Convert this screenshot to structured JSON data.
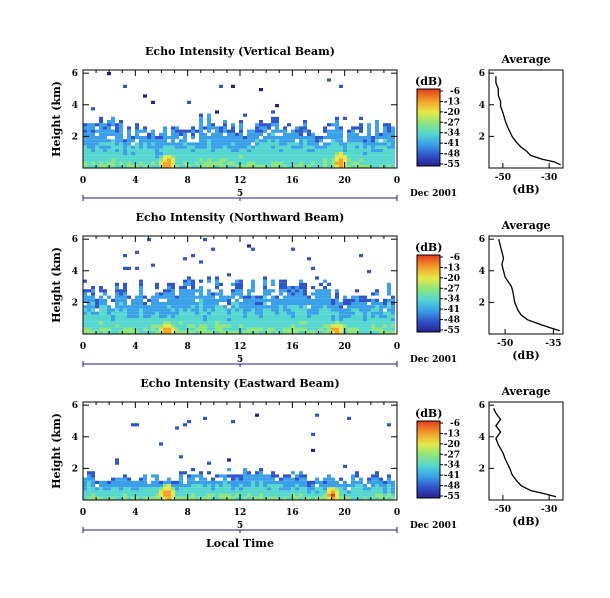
{
  "chart_data": [
    {
      "type": "heatmap",
      "title": "Echo Intensity (Vertical Beam)",
      "ylabel": "Height (km)",
      "x_ticks": [
        "0",
        "4",
        "8",
        "12",
        "16",
        "20",
        "0"
      ],
      "y_ticks": [
        "2",
        "4",
        "6"
      ],
      "xlim": [
        0,
        24
      ],
      "ylim": [
        0,
        6.2
      ],
      "date_marker": "5",
      "date_label": "Dec 2001",
      "colorbar": {
        "unit": "(dB)",
        "ticks": [
          "-6",
          "-13",
          "-20",
          "-27",
          "-34",
          "-41",
          "-48",
          "-55"
        ]
      },
      "echo_top_km": 2.6,
      "peaks": [
        {
          "x": 6.5,
          "height_km": 0.6
        },
        {
          "x": 19.8,
          "height_km": 0.7
        }
      ],
      "average_profile": {
        "title": "Average",
        "xlabel": "(dB)",
        "x_ticks": [
          "-50",
          "-30"
        ],
        "xlim": [
          -56,
          -24
        ],
        "y_ticks": [
          "2",
          "4",
          "6"
        ],
        "ylim": [
          0,
          6.2
        ],
        "points": [
          [
            -25,
            0.2
          ],
          [
            -28,
            0.4
          ],
          [
            -33,
            0.55
          ],
          [
            -38,
            0.8
          ],
          [
            -40,
            1.1
          ],
          [
            -42,
            1.3
          ],
          [
            -44,
            1.6
          ],
          [
            -46,
            2.0
          ],
          [
            -48,
            2.6
          ],
          [
            -49,
            3.0
          ],
          [
            -50,
            3.5
          ],
          [
            -51,
            3.9
          ],
          [
            -51,
            4.2
          ],
          [
            -52,
            4.6
          ],
          [
            -52,
            5.0
          ],
          [
            -53,
            5.4
          ],
          [
            -53,
            5.8
          ]
        ]
      }
    },
    {
      "type": "heatmap",
      "title": "Echo Intensity (Northward Beam)",
      "ylabel": "Height (km)",
      "x_ticks": [
        "0",
        "4",
        "8",
        "12",
        "16",
        "20",
        "0"
      ],
      "y_ticks": [
        "2",
        "4",
        "6"
      ],
      "xlim": [
        0,
        24
      ],
      "ylim": [
        0,
        6.2
      ],
      "date_marker": "5",
      "date_label": "Dec 2001",
      "colorbar": {
        "unit": "(dB)",
        "ticks": [
          "-6",
          "-13",
          "-20",
          "-27",
          "-34",
          "-41",
          "-48",
          "-55"
        ]
      },
      "echo_top_km": 2.8,
      "peaks": [
        {
          "x": 6.5,
          "height_km": 0.5
        },
        {
          "x": 19.5,
          "height_km": 0.5
        }
      ],
      "average_profile": {
        "title": "Average",
        "xlabel": "(dB)",
        "x_ticks": [
          "-50",
          "-35"
        ],
        "xlim": [
          -55,
          -32
        ],
        "y_ticks": [
          "2",
          "4",
          "6"
        ],
        "ylim": [
          0,
          6.2
        ],
        "points": [
          [
            -33,
            0.2
          ],
          [
            -36,
            0.4
          ],
          [
            -39,
            0.6
          ],
          [
            -43,
            0.9
          ],
          [
            -45,
            1.2
          ],
          [
            -46,
            1.5
          ],
          [
            -47,
            2.0
          ],
          [
            -47.5,
            2.6
          ],
          [
            -48,
            3.0
          ],
          [
            -50,
            3.6
          ],
          [
            -50.5,
            4.0
          ],
          [
            -51,
            4.4
          ],
          [
            -50.5,
            4.8
          ],
          [
            -51,
            5.2
          ],
          [
            -51.5,
            5.6
          ],
          [
            -52,
            6.0
          ]
        ]
      }
    },
    {
      "type": "heatmap",
      "title": "Echo Intensity (Eastward Beam)",
      "ylabel": "Height (km)",
      "x_ticks": [
        "0",
        "4",
        "8",
        "12",
        "16",
        "20",
        "0"
      ],
      "y_ticks": [
        "2",
        "4",
        "6"
      ],
      "xlim": [
        0,
        24
      ],
      "ylim": [
        0,
        6.2
      ],
      "date_marker": "5",
      "date_label": "Dec 2001",
      "xlabel": "Local Time",
      "colorbar": {
        "unit": "(dB)",
        "ticks": [
          "-6",
          "-13",
          "-20",
          "-27",
          "-34",
          "-41",
          "-48",
          "-55"
        ]
      },
      "echo_top_km": 1.5,
      "peaks": [
        {
          "x": 6.5,
          "height_km": 0.7
        },
        {
          "x": 19.2,
          "height_km": 0.6
        }
      ],
      "average_profile": {
        "title": "Average",
        "xlabel": "(dB)",
        "x_ticks": [
          "-50",
          "-30"
        ],
        "xlim": [
          -56,
          -24
        ],
        "y_ticks": [
          "2",
          "4",
          "6"
        ],
        "ylim": [
          0,
          6.2
        ],
        "points": [
          [
            -27,
            0.2
          ],
          [
            -32,
            0.4
          ],
          [
            -38,
            0.6
          ],
          [
            -42,
            0.9
          ],
          [
            -44,
            1.2
          ],
          [
            -46,
            1.6
          ],
          [
            -47,
            2.0
          ],
          [
            -49,
            2.6
          ],
          [
            -50,
            3.0
          ],
          [
            -52,
            3.5
          ],
          [
            -53,
            3.9
          ],
          [
            -51,
            4.3
          ],
          [
            -53,
            4.7
          ],
          [
            -51,
            5.1
          ],
          [
            -53,
            5.5
          ],
          [
            -54,
            5.8
          ]
        ]
      }
    }
  ],
  "colors": {
    "colormap": [
      "#2a1f8f",
      "#2f55c9",
      "#3aa0e8",
      "#55d7d0",
      "#8ee67a",
      "#e6e84a",
      "#f2a12a",
      "#e23a1e"
    ],
    "date_axis": "#1a1a8c"
  }
}
